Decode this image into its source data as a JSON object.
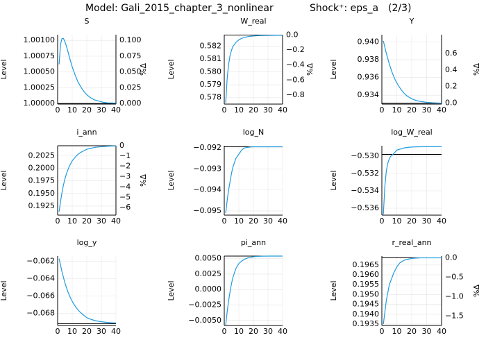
{
  "figure": {
    "title_model": "Model: Gali_2015_chapter_3_nonlinear",
    "title_shock": "Shock⁺: eps_a",
    "title_page": "(2/3)",
    "series_color": "#1f9bde"
  },
  "chart_data": [
    {
      "type": "line",
      "title": "S",
      "ylabel": "Level",
      "y2label": "%Δ",
      "xlim": [
        0,
        40
      ],
      "ylim": [
        0.99999,
        1.00109
      ],
      "xticks": [
        0,
        10,
        20,
        30,
        40
      ],
      "yticks": [
        {
          "v": 1.0,
          "label": "1.00000"
        },
        {
          "v": 1.00025,
          "label": "1.00025"
        },
        {
          "v": 1.0005,
          "label": "1.00050"
        },
        {
          "v": 1.00075,
          "label": "1.00075"
        },
        {
          "v": 1.001,
          "label": "1.00100"
        }
      ],
      "y2ticks": [
        {
          "v": 1.0,
          "label": "0.000"
        },
        {
          "v": 1.00025,
          "label": "0.025"
        },
        {
          "v": 1.0005,
          "label": "0.050"
        },
        {
          "v": 1.00075,
          "label": "0.075"
        },
        {
          "v": 1.001,
          "label": "0.100"
        }
      ],
      "steady_state": 1.0,
      "x": [
        1,
        2,
        3,
        4,
        5,
        6,
        7,
        8,
        10,
        12,
        14,
        16,
        18,
        20,
        22,
        25,
        28,
        31,
        34,
        37,
        40
      ],
      "y": [
        1.00062,
        1.00094,
        1.00103,
        1.00103,
        1.00098,
        1.00091,
        1.00083,
        1.00074,
        1.00058,
        1.00045,
        1.00034,
        1.00026,
        1.00019,
        1.00014,
        1.0001,
        1.00006,
        1.00004,
        1.00002,
        1.00001,
        1.000008,
        1.000005
      ]
    },
    {
      "type": "line",
      "title": "W_real",
      "ylabel": "Level",
      "y2label": "%Δ",
      "xlim": [
        0,
        40
      ],
      "ylim": [
        0.5775,
        0.5829
      ],
      "xticks": [
        0,
        10,
        20,
        30,
        40
      ],
      "yticks": [
        {
          "v": 0.578,
          "label": "0.578"
        },
        {
          "v": 0.579,
          "label": "0.579"
        },
        {
          "v": 0.58,
          "label": "0.580"
        },
        {
          "v": 0.581,
          "label": "0.581"
        },
        {
          "v": 0.582,
          "label": "0.582"
        }
      ],
      "y2ticks": [
        {
          "v": 0.58287,
          "label": "0.0"
        },
        {
          "v": 0.58171,
          "label": "−0.2"
        },
        {
          "v": 0.58054,
          "label": "−0.4"
        },
        {
          "v": 0.57937,
          "label": "−0.6"
        },
        {
          "v": 0.5782,
          "label": "−0.8"
        }
      ],
      "steady_state": 0.58287,
      "x": [
        1,
        2,
        3,
        4,
        5,
        6,
        8,
        10,
        12,
        15,
        18,
        21,
        25,
        30,
        35,
        40
      ],
      "y": [
        0.5776,
        0.5795,
        0.5806,
        0.5813,
        0.5817,
        0.582,
        0.5823,
        0.5825,
        0.58262,
        0.58272,
        0.58278,
        0.58281,
        0.58284,
        0.58285,
        0.58286,
        0.58286
      ]
    },
    {
      "type": "line",
      "title": "Y",
      "ylabel": "Level",
      "y2label": "%Δ",
      "xlim": [
        0,
        40
      ],
      "ylim": [
        0.933,
        0.9408
      ],
      "xticks": [
        0,
        10,
        20,
        30,
        40
      ],
      "yticks": [
        {
          "v": 0.934,
          "label": "0.934"
        },
        {
          "v": 0.936,
          "label": "0.936"
        },
        {
          "v": 0.938,
          "label": "0.938"
        },
        {
          "v": 0.94,
          "label": "0.940"
        }
      ],
      "y2ticks": [
        {
          "v": 0.9331,
          "label": "0.0"
        },
        {
          "v": 0.93497,
          "label": "0.2"
        },
        {
          "v": 0.93683,
          "label": "0.4"
        },
        {
          "v": 0.9387,
          "label": "0.6"
        }
      ],
      "steady_state": 0.9331,
      "x": [
        1,
        3,
        5,
        7,
        9,
        11,
        13,
        15,
        17,
        20,
        23,
        26,
        30,
        34,
        38,
        40
      ],
      "y": [
        0.9401,
        0.9387,
        0.9375,
        0.9365,
        0.9357,
        0.9351,
        0.9346,
        0.9342,
        0.9339,
        0.9336,
        0.9334,
        0.93329,
        0.9332,
        0.93315,
        0.93312,
        0.93311
      ]
    },
    {
      "type": "line",
      "title": "i_ann",
      "ylabel": "Level",
      "y2label": "%Δ",
      "xlim": [
        0,
        40
      ],
      "ylim": [
        0.1907,
        0.2045
      ],
      "xticks": [
        0,
        10,
        20,
        30,
        40
      ],
      "yticks": [
        {
          "v": 0.1925,
          "label": "0.1925"
        },
        {
          "v": 0.195,
          "label": "0.1950"
        },
        {
          "v": 0.1975,
          "label": "0.1975"
        },
        {
          "v": 0.2,
          "label": "0.2000"
        },
        {
          "v": 0.2025,
          "label": "0.2025"
        }
      ],
      "y2ticks": [
        {
          "v": 0.2045,
          "label": "0"
        },
        {
          "v": 0.20245,
          "label": "−1"
        },
        {
          "v": 0.2004,
          "label": "−2"
        },
        {
          "v": 0.19835,
          "label": "−3"
        },
        {
          "v": 0.1963,
          "label": "−4"
        },
        {
          "v": 0.19425,
          "label": "−5"
        },
        {
          "v": 0.1922,
          "label": "−6"
        }
      ],
      "steady_state": 0.2045,
      "x": [
        1,
        2,
        3,
        4,
        5,
        6,
        8,
        10,
        12,
        14,
        16,
        18,
        20,
        23,
        26,
        30,
        34,
        38,
        40
      ],
      "y": [
        0.1914,
        0.1934,
        0.1952,
        0.1967,
        0.1979,
        0.1989,
        0.2004,
        0.2015,
        0.2022,
        0.2028,
        0.2032,
        0.2035,
        0.2038,
        0.204,
        0.2042,
        0.2043,
        0.2044,
        0.20445,
        0.20447
      ]
    },
    {
      "type": "line",
      "title": "log_N",
      "ylabel": "Level",
      "y2label": "",
      "xlim": [
        0,
        40
      ],
      "ylim": [
        -0.0952,
        -0.0919
      ],
      "xticks": [
        0,
        10,
        20,
        30,
        40
      ],
      "yticks": [
        {
          "v": -0.092,
          "label": "−0.092"
        },
        {
          "v": -0.093,
          "label": "−0.093"
        },
        {
          "v": -0.094,
          "label": "−0.094"
        },
        {
          "v": -0.095,
          "label": "−0.095"
        }
      ],
      "y2ticks": [],
      "steady_state": -0.09195,
      "x": [
        1,
        2,
        3,
        4,
        5,
        6,
        8,
        10,
        12,
        14,
        16,
        18,
        20,
        23,
        26,
        30,
        34,
        38,
        40
      ],
      "y": [
        -0.0951,
        -0.0945,
        -0.094,
        -0.0936,
        -0.0932,
        -0.0929,
        -0.0925,
        -0.0923,
        -0.0921,
        -0.092,
        -0.09198,
        -0.09196,
        -0.09195,
        -0.09195,
        -0.09195,
        -0.09195,
        -0.09195,
        -0.09195,
        -0.09195
      ]
    },
    {
      "type": "line",
      "title": "log_W_real",
      "ylabel": "Level",
      "y2label": "",
      "xlim": [
        0,
        40
      ],
      "ylim": [
        -0.5368,
        -0.5288
      ],
      "xticks": [
        0,
        10,
        20,
        30,
        40
      ],
      "yticks": [
        {
          "v": -0.53,
          "label": "−0.530"
        },
        {
          "v": -0.532,
          "label": "−0.532"
        },
        {
          "v": -0.534,
          "label": "−0.534"
        },
        {
          "v": -0.536,
          "label": "−0.536"
        }
      ],
      "y2ticks": [],
      "steady_state": -0.5298,
      "x": [
        1,
        2,
        3,
        4,
        5,
        6,
        8,
        10,
        12,
        15,
        18,
        21,
        25,
        30,
        35,
        40
      ],
      "y": [
        -0.5367,
        -0.5335,
        -0.5317,
        -0.5308,
        -0.5303,
        -0.53,
        -0.5297,
        -0.5293,
        -0.5292,
        -0.52905,
        -0.52898,
        -0.52894,
        -0.52892,
        -0.52891,
        -0.5289,
        -0.5289
      ]
    },
    {
      "type": "line",
      "title": "log_y",
      "ylabel": "Level",
      "y2label": "",
      "xlim": [
        0,
        40
      ],
      "ylim": [
        -0.0694,
        -0.0614
      ],
      "xticks": [
        0,
        10,
        20,
        30,
        40
      ],
      "yticks": [
        {
          "v": -0.062,
          "label": "−0.062"
        },
        {
          "v": -0.064,
          "label": "−0.064"
        },
        {
          "v": -0.066,
          "label": "−0.066"
        },
        {
          "v": -0.068,
          "label": "−0.068"
        }
      ],
      "y2ticks": [],
      "steady_state": -0.0692,
      "x": [
        1,
        3,
        5,
        7,
        9,
        11,
        13,
        15,
        17,
        20,
        23,
        26,
        30,
        34,
        38,
        40
      ],
      "y": [
        -0.0617,
        -0.0632,
        -0.0645,
        -0.0655,
        -0.0663,
        -0.0669,
        -0.0674,
        -0.0678,
        -0.0681,
        -0.0685,
        -0.0687,
        -0.06885,
        -0.06897,
        -0.06905,
        -0.0691,
        -0.06912
      ]
    },
    {
      "type": "line",
      "title": "pi_ann",
      "ylabel": "Level",
      "y2label": "",
      "xlim": [
        0,
        40
      ],
      "ylim": [
        -0.0058,
        0.0054
      ],
      "xticks": [
        0,
        10,
        20,
        30,
        40
      ],
      "yticks": [
        {
          "v": 0.005,
          "label": "0.0050"
        },
        {
          "v": 0.0025,
          "label": "0.0025"
        },
        {
          "v": 0.0,
          "label": "0.0000"
        },
        {
          "v": -0.0025,
          "label": "−0.0025"
        },
        {
          "v": -0.005,
          "label": "−0.0050"
        }
      ],
      "y2ticks": [],
      "steady_state": 0.0054,
      "x": [
        1,
        2,
        3,
        4,
        5,
        6,
        8,
        10,
        12,
        14,
        16,
        18,
        20,
        23,
        26,
        30,
        34,
        38,
        40
      ],
      "y": [
        -0.0057,
        -0.0036,
        -0.0018,
        -0.0003,
        0.001,
        0.002,
        0.0034,
        0.0042,
        0.0046,
        0.0049,
        0.0051,
        0.0052,
        0.0053,
        0.00535,
        0.00538,
        0.0054,
        0.0054,
        0.0054,
        0.0054
      ]
    },
    {
      "type": "line",
      "title": "r_real_ann",
      "ylabel": "Level",
      "y2label": "%Δ",
      "xlim": [
        0,
        40
      ],
      "ylim": [
        0.19343,
        0.19695
      ],
      "xticks": [
        0,
        10,
        20,
        30,
        40
      ],
      "yticks": [
        {
          "v": 0.1935,
          "label": "0.1935"
        },
        {
          "v": 0.194,
          "label": "0.1940"
        },
        {
          "v": 0.1945,
          "label": "0.1945"
        },
        {
          "v": 0.195,
          "label": "0.1950"
        },
        {
          "v": 0.1955,
          "label": "0.1955"
        },
        {
          "v": 0.196,
          "label": "0.1960"
        },
        {
          "v": 0.1965,
          "label": "0.1965"
        }
      ],
      "y2ticks": [
        {
          "v": 0.19686,
          "label": "0.0"
        },
        {
          "v": 0.19588,
          "label": "−0.5"
        },
        {
          "v": 0.19489,
          "label": "−1.0"
        },
        {
          "v": 0.19391,
          "label": "−1.5"
        }
      ],
      "steady_state": 0.19686,
      "x": [
        1,
        2,
        3,
        4,
        5,
        6,
        8,
        10,
        12,
        14,
        16,
        18,
        20,
        23,
        26,
        30,
        34,
        38,
        40
      ],
      "y": [
        0.1935,
        0.1941,
        0.1947,
        0.1951,
        0.1955,
        0.1957,
        0.1961,
        0.1964,
        0.1966,
        0.1967,
        0.19677,
        0.1968,
        0.19683,
        0.19685,
        0.19686,
        0.19686,
        0.19686,
        0.19686,
        0.19686
      ]
    }
  ]
}
